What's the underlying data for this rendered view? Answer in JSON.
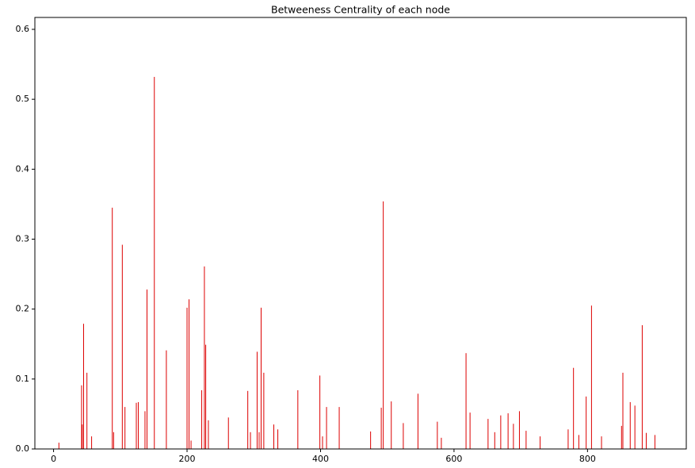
{
  "chart_data": {
    "type": "bar",
    "title": "Betweeness Centrality of each node",
    "color": "#dd0000",
    "grid": false,
    "x": [
      8,
      42,
      43,
      45,
      50,
      57,
      88,
      90,
      103,
      107,
      124,
      127,
      137,
      140,
      151,
      169,
      200,
      203,
      206,
      222,
      226,
      228,
      232,
      262,
      291,
      295,
      305,
      308,
      311,
      315,
      330,
      336,
      366,
      399,
      403,
      409,
      428,
      475,
      491,
      494,
      506,
      524,
      546,
      575,
      581,
      618,
      624,
      651,
      661,
      670,
      681,
      689,
      698,
      708,
      729,
      771,
      779,
      787,
      798,
      806,
      821,
      851,
      853,
      864,
      871,
      882,
      888,
      901
    ],
    "values": [
      0.009,
      0.091,
      0.035,
      0.179,
      0.109,
      0.018,
      0.345,
      0.024,
      0.292,
      0.06,
      0.066,
      0.067,
      0.054,
      0.228,
      0.532,
      0.141,
      0.202,
      0.214,
      0.012,
      0.084,
      0.261,
      0.149,
      0.041,
      0.045,
      0.083,
      0.024,
      0.139,
      0.024,
      0.202,
      0.109,
      0.035,
      0.028,
      0.084,
      0.105,
      0.018,
      0.06,
      0.06,
      0.025,
      0.059,
      0.354,
      0.068,
      0.037,
      0.079,
      0.039,
      0.016,
      0.137,
      0.052,
      0.043,
      0.024,
      0.048,
      0.051,
      0.036,
      0.054,
      0.026,
      0.018,
      0.028,
      0.116,
      0.02,
      0.075,
      0.205,
      0.018,
      0.033,
      0.109,
      0.067,
      0.062,
      0.177,
      0.023,
      0.02
    ],
    "xlim": [
      -28,
      948
    ],
    "ylim": [
      0,
      0.617
    ],
    "xticks": [
      0,
      200,
      400,
      600,
      800
    ],
    "yticks": [
      {
        "value": 0,
        "label": "0.0"
      },
      0.1,
      0.2,
      0.3,
      0.4,
      0.5,
      0.6
    ]
  }
}
